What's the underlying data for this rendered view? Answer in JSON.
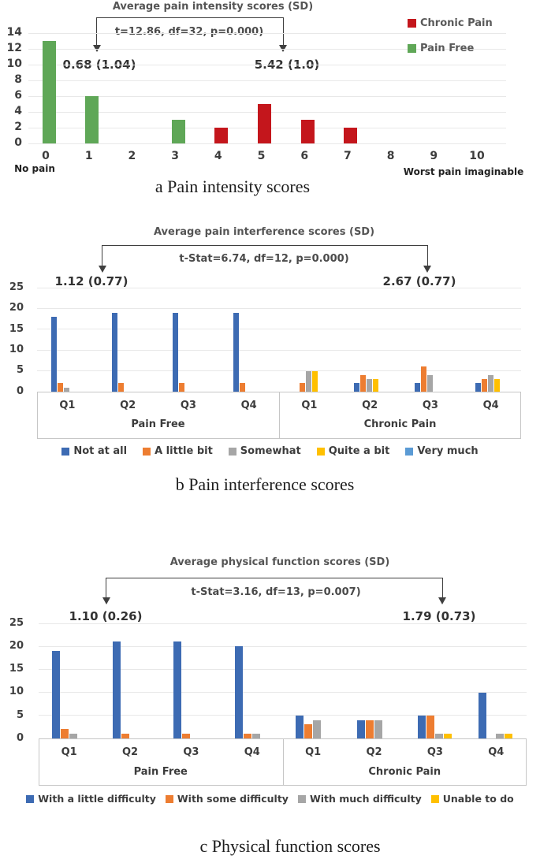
{
  "charts": [
    {
      "id": "a",
      "title": "Average pain intensity scores (SD)",
      "stat_annotation": "t=12.86, df=32, p=0.000)",
      "mean_left": "0.68 (1.04)",
      "mean_right": "5.42 (1.0)",
      "caption": "a Pain intensity scores",
      "axis_note_left": "No pain",
      "axis_note_right": "Worst pain imaginable",
      "legend": [
        {
          "label": "Chronic Pain",
          "color": "#c4161c"
        },
        {
          "label": "Pain Free",
          "color": "#5fa757"
        }
      ],
      "chart_data": {
        "type": "bar",
        "title": "Average pain intensity scores (SD)",
        "categories": [
          "0",
          "1",
          "2",
          "3",
          "4",
          "5",
          "6",
          "7",
          "8",
          "9",
          "10"
        ],
        "series": [
          {
            "name": "Pain Free",
            "color": "#5fa757",
            "values": [
              13,
              6,
              0,
              3,
              0,
              0,
              0,
              0,
              0,
              0,
              0
            ]
          },
          {
            "name": "Chronic Pain",
            "color": "#c4161c",
            "values": [
              0,
              0,
              0,
              0,
              2,
              5,
              3,
              2,
              0,
              0,
              0
            ]
          }
        ],
        "ylim": [
          0,
          14
        ],
        "ytick_step": 2,
        "grid": true,
        "legend_position": "top-right",
        "xlabel": "",
        "ylabel": "",
        "annotations": [
          "t=12.86, df=32, p=0.000)",
          "0.68 (1.04)",
          "5.42 (1.0)",
          "No pain",
          "Worst pain imaginable"
        ]
      }
    },
    {
      "id": "b",
      "title": "Average pain interference scores (SD)",
      "stat_annotation": "t-Stat=6.74, df=12, p=0.000)",
      "mean_left": "1.12 (0.77)",
      "mean_right": "2.67 (0.77)",
      "caption": "b Pain interference scores",
      "chart_data": {
        "type": "grouped-bar",
        "title": "Average pain interference scores (SD)",
        "group_labels": [
          "Pain Free",
          "Chronic Pain"
        ],
        "categories": [
          "Q1",
          "Q2",
          "Q3",
          "Q4"
        ],
        "series": [
          {
            "name": "Not at all",
            "color": "#3d6bb3",
            "values": [
              18,
              19,
              19,
              19,
              0,
              2,
              2,
              2
            ]
          },
          {
            "name": "A little bit",
            "color": "#ed7d31",
            "values": [
              2,
              2,
              2,
              2,
              2,
              4,
              6,
              3
            ]
          },
          {
            "name": "Somewhat",
            "color": "#a6a6a6",
            "values": [
              1,
              0,
              0,
              0,
              5,
              3,
              4,
              4
            ]
          },
          {
            "name": "Quite a bit",
            "color": "#ffc000",
            "values": [
              0,
              0,
              0,
              0,
              5,
              3,
              0,
              3
            ]
          },
          {
            "name": "Very much",
            "color": "#5b9bd5",
            "values": [
              0,
              0,
              0,
              0,
              0,
              0,
              0,
              0
            ]
          }
        ],
        "ylim": [
          0,
          25
        ],
        "ytick_step": 5,
        "grid": true,
        "legend_position": "bottom",
        "annotations": [
          "t-Stat=6.74, df=12, p=0.000)",
          "1.12 (0.77)",
          "2.67 (0.77)"
        ]
      }
    },
    {
      "id": "c",
      "title": "Average physical function scores (SD)",
      "stat_annotation": "t-Stat=3.16, df=13, p=0.007)",
      "mean_left": "1.10 (0.26)",
      "mean_right": "1.79 (0.73)",
      "caption": "c Physical function scores",
      "chart_data": {
        "type": "grouped-bar",
        "title": "Average physical function scores (SD)",
        "group_labels": [
          "Pain Free",
          "Chronic Pain"
        ],
        "categories": [
          "Q1",
          "Q2",
          "Q3",
          "Q4"
        ],
        "series": [
          {
            "name": "With a little difficulty",
            "color": "#3d6bb3",
            "values": [
              19,
              21,
              21,
              20,
              5,
              4,
              5,
              10
            ]
          },
          {
            "name": "With some difficulty",
            "color": "#ed7d31",
            "values": [
              2,
              1,
              1,
              1,
              3,
              4,
              5,
              0
            ]
          },
          {
            "name": "With much difficulty",
            "color": "#a6a6a6",
            "values": [
              1,
              0,
              0,
              1,
              4,
              4,
              1,
              1
            ]
          },
          {
            "name": "Unable to do",
            "color": "#ffc000",
            "values": [
              0,
              0,
              0,
              0,
              0,
              0,
              1,
              1
            ]
          }
        ],
        "ylim": [
          0,
          25
        ],
        "ytick_step": 5,
        "grid": true,
        "legend_position": "bottom",
        "annotations": [
          "t-Stat=3.16, df=13, p=0.007)",
          "1.10 (0.26)",
          "1.79 (0.73)"
        ]
      }
    }
  ]
}
